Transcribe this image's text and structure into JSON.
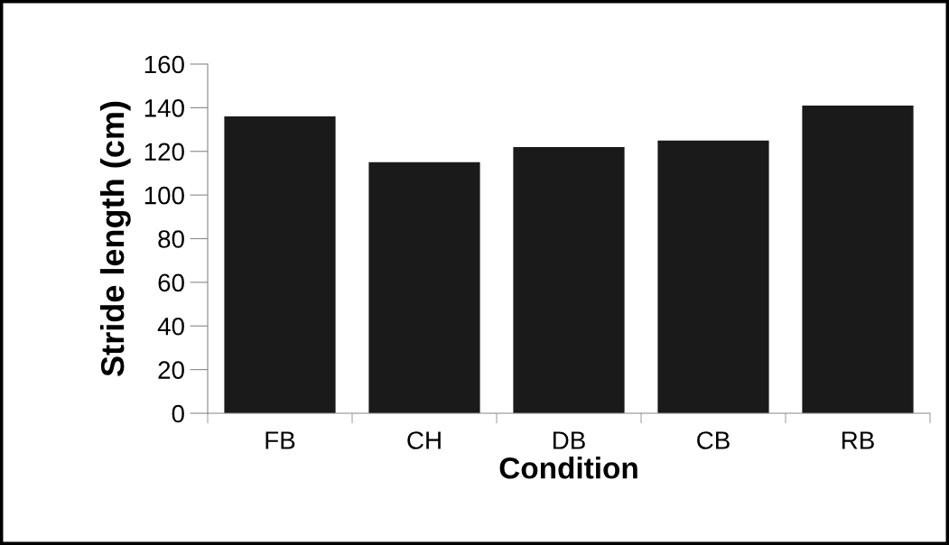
{
  "chart_data": {
    "type": "bar",
    "xlabel": "Condition",
    "ylabel": "Stride length (cm)",
    "categories": [
      "FB",
      "CH",
      "DB",
      "CB",
      "RB"
    ],
    "values": [
      136,
      115,
      122,
      125,
      141
    ],
    "color": "#1a1a1a",
    "ylim": [
      0,
      160
    ],
    "yticks": [
      0,
      20,
      40,
      60,
      80,
      100,
      120,
      140,
      160
    ],
    "grid": false,
    "legend": false
  }
}
